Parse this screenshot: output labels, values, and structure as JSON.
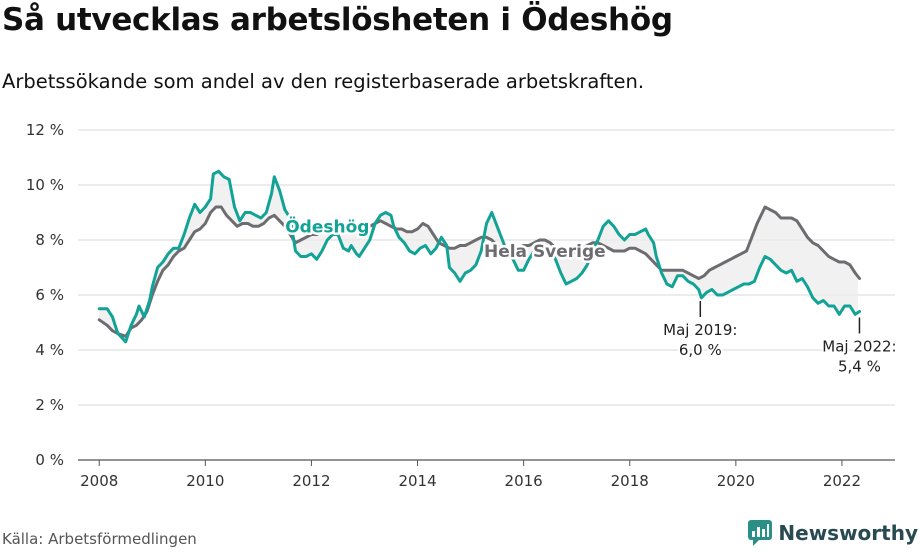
{
  "title": "Så utvecklas arbetslösheten i Ödeshög",
  "subtitle": "Arbetssökande som andel av den registerbaserade arbetskraften.",
  "source": "Källa: Arbetsförmedlingen",
  "brand": "Newsworthy",
  "colors": {
    "local": "#12a396",
    "national": "#6d6d71",
    "grid": "#d9d9d9",
    "fill": "#ececec",
    "brand": "#2a8f86"
  },
  "chart_data": {
    "type": "line",
    "ylim": [
      0,
      12
    ],
    "yticks": [
      0,
      2,
      4,
      6,
      8,
      10,
      12
    ],
    "ytick_labels": [
      "0 %",
      "2 %",
      "4 %",
      "6 %",
      "8 %",
      "10 %",
      "12 %"
    ],
    "xlim": [
      2007.6,
      2023.0
    ],
    "xticks": [
      2008,
      2010,
      2012,
      2014,
      2016,
      2018,
      2020,
      2022
    ],
    "xtick_labels": [
      "2008",
      "2010",
      "2012",
      "2014",
      "2016",
      "2018",
      "2020",
      "2022"
    ],
    "grid": true,
    "series": [
      {
        "name": "Ödeshög",
        "key": "local",
        "points": [
          [
            2008.0,
            5.5
          ],
          [
            2008.15,
            5.5
          ],
          [
            2008.25,
            5.2
          ],
          [
            2008.35,
            4.6
          ],
          [
            2008.45,
            4.4
          ],
          [
            2008.5,
            4.3
          ],
          [
            2008.6,
            4.9
          ],
          [
            2008.7,
            5.3
          ],
          [
            2008.75,
            5.6
          ],
          [
            2008.85,
            5.2
          ],
          [
            2008.95,
            5.8
          ],
          [
            2009.0,
            6.3
          ],
          [
            2009.1,
            7.0
          ],
          [
            2009.2,
            7.2
          ],
          [
            2009.3,
            7.5
          ],
          [
            2009.4,
            7.7
          ],
          [
            2009.5,
            7.7
          ],
          [
            2009.6,
            8.2
          ],
          [
            2009.7,
            8.8
          ],
          [
            2009.8,
            9.3
          ],
          [
            2009.9,
            9.0
          ],
          [
            2010.0,
            9.2
          ],
          [
            2010.1,
            9.5
          ],
          [
            2010.15,
            10.4
          ],
          [
            2010.25,
            10.5
          ],
          [
            2010.35,
            10.3
          ],
          [
            2010.45,
            10.2
          ],
          [
            2010.55,
            9.2
          ],
          [
            2010.65,
            8.7
          ],
          [
            2010.75,
            9.0
          ],
          [
            2010.85,
            9.0
          ],
          [
            2010.95,
            8.9
          ],
          [
            2011.05,
            8.8
          ],
          [
            2011.15,
            9.0
          ],
          [
            2011.25,
            9.7
          ],
          [
            2011.3,
            10.3
          ],
          [
            2011.4,
            9.8
          ],
          [
            2011.5,
            9.1
          ],
          [
            2011.6,
            8.8
          ],
          [
            2011.7,
            7.6
          ],
          [
            2011.8,
            7.4
          ],
          [
            2011.9,
            7.4
          ],
          [
            2012.0,
            7.5
          ],
          [
            2012.1,
            7.3
          ],
          [
            2012.2,
            7.6
          ],
          [
            2012.3,
            8.0
          ],
          [
            2012.4,
            8.2
          ],
          [
            2012.5,
            8.2
          ],
          [
            2012.6,
            7.7
          ],
          [
            2012.7,
            7.6
          ],
          [
            2012.75,
            7.8
          ],
          [
            2012.85,
            7.5
          ],
          [
            2012.9,
            7.4
          ],
          [
            2013.0,
            7.7
          ],
          [
            2013.1,
            8.0
          ],
          [
            2013.2,
            8.6
          ],
          [
            2013.3,
            8.9
          ],
          [
            2013.4,
            9.0
          ],
          [
            2013.5,
            8.9
          ],
          [
            2013.55,
            8.5
          ],
          [
            2013.65,
            8.1
          ],
          [
            2013.75,
            7.9
          ],
          [
            2013.85,
            7.6
          ],
          [
            2013.95,
            7.5
          ],
          [
            2014.05,
            7.7
          ],
          [
            2014.15,
            7.8
          ],
          [
            2014.25,
            7.5
          ],
          [
            2014.35,
            7.7
          ],
          [
            2014.45,
            8.1
          ],
          [
            2014.55,
            7.8
          ],
          [
            2014.6,
            7.0
          ],
          [
            2014.7,
            6.8
          ],
          [
            2014.8,
            6.5
          ],
          [
            2014.9,
            6.8
          ],
          [
            2015.0,
            6.9
          ],
          [
            2015.1,
            7.1
          ],
          [
            2015.2,
            7.6
          ],
          [
            2015.3,
            8.6
          ],
          [
            2015.4,
            9.0
          ],
          [
            2015.5,
            8.5
          ],
          [
            2015.6,
            8.0
          ],
          [
            2015.7,
            7.5
          ],
          [
            2015.8,
            7.3
          ],
          [
            2015.9,
            6.9
          ],
          [
            2016.0,
            6.9
          ],
          [
            2016.1,
            7.3
          ],
          [
            2016.2,
            7.6
          ],
          [
            2016.3,
            7.6
          ],
          [
            2016.4,
            7.6
          ],
          [
            2016.5,
            7.6
          ],
          [
            2016.6,
            7.3
          ],
          [
            2016.7,
            6.8
          ],
          [
            2016.8,
            6.4
          ],
          [
            2016.9,
            6.5
          ],
          [
            2017.0,
            6.6
          ],
          [
            2017.1,
            6.8
          ],
          [
            2017.2,
            7.1
          ],
          [
            2017.3,
            7.6
          ],
          [
            2017.4,
            8.0
          ],
          [
            2017.5,
            8.5
          ],
          [
            2017.6,
            8.7
          ],
          [
            2017.7,
            8.5
          ],
          [
            2017.8,
            8.2
          ],
          [
            2017.9,
            8.0
          ],
          [
            2018.0,
            8.2
          ],
          [
            2018.1,
            8.2
          ],
          [
            2018.2,
            8.3
          ],
          [
            2018.3,
            8.4
          ],
          [
            2018.35,
            8.2
          ],
          [
            2018.45,
            7.9
          ],
          [
            2018.5,
            7.4
          ],
          [
            2018.6,
            6.8
          ],
          [
            2018.7,
            6.4
          ],
          [
            2018.8,
            6.3
          ],
          [
            2018.9,
            6.7
          ],
          [
            2019.0,
            6.7
          ],
          [
            2019.1,
            6.5
          ],
          [
            2019.2,
            6.4
          ],
          [
            2019.3,
            6.2
          ],
          [
            2019.35,
            5.9
          ],
          [
            2019.45,
            6.1
          ],
          [
            2019.55,
            6.2
          ],
          [
            2019.65,
            6.0
          ],
          [
            2019.75,
            6.0
          ],
          [
            2019.85,
            6.1
          ],
          [
            2019.95,
            6.2
          ],
          [
            2020.05,
            6.3
          ],
          [
            2020.15,
            6.4
          ],
          [
            2020.25,
            6.4
          ],
          [
            2020.35,
            6.5
          ],
          [
            2020.45,
            7.0
          ],
          [
            2020.55,
            7.4
          ],
          [
            2020.65,
            7.3
          ],
          [
            2020.75,
            7.1
          ],
          [
            2020.85,
            6.9
          ],
          [
            2020.95,
            6.8
          ],
          [
            2021.05,
            6.9
          ],
          [
            2021.15,
            6.5
          ],
          [
            2021.25,
            6.6
          ],
          [
            2021.35,
            6.3
          ],
          [
            2021.45,
            5.9
          ],
          [
            2021.55,
            5.7
          ],
          [
            2021.65,
            5.8
          ],
          [
            2021.75,
            5.6
          ],
          [
            2021.85,
            5.6
          ],
          [
            2021.95,
            5.3
          ],
          [
            2022.05,
            5.6
          ],
          [
            2022.15,
            5.6
          ],
          [
            2022.25,
            5.3
          ],
          [
            2022.33,
            5.4
          ]
        ]
      },
      {
        "name": "Hela Sverige",
        "key": "national",
        "points": [
          [
            2008.0,
            5.1
          ],
          [
            2008.15,
            4.9
          ],
          [
            2008.25,
            4.7
          ],
          [
            2008.35,
            4.6
          ],
          [
            2008.5,
            4.5
          ],
          [
            2008.6,
            4.8
          ],
          [
            2008.7,
            4.9
          ],
          [
            2008.8,
            5.1
          ],
          [
            2008.9,
            5.4
          ],
          [
            2009.0,
            6.0
          ],
          [
            2009.1,
            6.5
          ],
          [
            2009.2,
            6.9
          ],
          [
            2009.3,
            7.1
          ],
          [
            2009.4,
            7.4
          ],
          [
            2009.5,
            7.6
          ],
          [
            2009.6,
            7.7
          ],
          [
            2009.7,
            8.0
          ],
          [
            2009.8,
            8.3
          ],
          [
            2009.9,
            8.4
          ],
          [
            2010.0,
            8.6
          ],
          [
            2010.1,
            9.0
          ],
          [
            2010.2,
            9.2
          ],
          [
            2010.3,
            9.2
          ],
          [
            2010.4,
            8.9
          ],
          [
            2010.5,
            8.7
          ],
          [
            2010.6,
            8.5
          ],
          [
            2010.7,
            8.6
          ],
          [
            2010.8,
            8.6
          ],
          [
            2010.9,
            8.5
          ],
          [
            2011.0,
            8.5
          ],
          [
            2011.1,
            8.6
          ],
          [
            2011.2,
            8.8
          ],
          [
            2011.3,
            8.9
          ],
          [
            2011.4,
            8.7
          ],
          [
            2011.5,
            8.5
          ],
          [
            2011.6,
            8.2
          ],
          [
            2011.7,
            7.9
          ],
          [
            2011.8,
            8.0
          ],
          [
            2011.9,
            8.1
          ],
          [
            2012.0,
            8.2
          ],
          [
            2012.1,
            8.2
          ],
          [
            2012.2,
            8.3
          ],
          [
            2012.3,
            8.4
          ],
          [
            2012.4,
            8.5
          ],
          [
            2012.5,
            8.5
          ],
          [
            2012.6,
            8.5
          ],
          [
            2012.7,
            8.4
          ],
          [
            2012.8,
            8.3
          ],
          [
            2012.9,
            8.3
          ],
          [
            2013.0,
            8.4
          ],
          [
            2013.1,
            8.5
          ],
          [
            2013.2,
            8.6
          ],
          [
            2013.3,
            8.7
          ],
          [
            2013.4,
            8.6
          ],
          [
            2013.5,
            8.5
          ],
          [
            2013.6,
            8.4
          ],
          [
            2013.7,
            8.4
          ],
          [
            2013.8,
            8.3
          ],
          [
            2013.9,
            8.3
          ],
          [
            2014.0,
            8.4
          ],
          [
            2014.1,
            8.6
          ],
          [
            2014.2,
            8.5
          ],
          [
            2014.3,
            8.2
          ],
          [
            2014.4,
            7.9
          ],
          [
            2014.5,
            7.8
          ],
          [
            2014.6,
            7.7
          ],
          [
            2014.7,
            7.7
          ],
          [
            2014.8,
            7.8
          ],
          [
            2014.9,
            7.8
          ],
          [
            2015.0,
            7.9
          ],
          [
            2015.1,
            8.0
          ],
          [
            2015.2,
            8.1
          ],
          [
            2015.3,
            8.1
          ],
          [
            2015.4,
            8.0
          ],
          [
            2015.5,
            7.8
          ],
          [
            2015.6,
            7.6
          ],
          [
            2015.7,
            7.5
          ],
          [
            2015.8,
            7.6
          ],
          [
            2015.9,
            7.7
          ],
          [
            2016.0,
            7.8
          ],
          [
            2016.1,
            7.8
          ],
          [
            2016.2,
            7.9
          ],
          [
            2016.3,
            8.0
          ],
          [
            2016.4,
            8.0
          ],
          [
            2016.5,
            7.9
          ],
          [
            2016.6,
            7.7
          ],
          [
            2016.7,
            7.5
          ],
          [
            2016.8,
            7.4
          ],
          [
            2016.9,
            7.5
          ],
          [
            2017.0,
            7.6
          ],
          [
            2017.1,
            7.7
          ],
          [
            2017.2,
            7.8
          ],
          [
            2017.3,
            7.9
          ],
          [
            2017.4,
            7.9
          ],
          [
            2017.5,
            7.8
          ],
          [
            2017.6,
            7.7
          ],
          [
            2017.7,
            7.6
          ],
          [
            2017.8,
            7.6
          ],
          [
            2017.9,
            7.6
          ],
          [
            2018.0,
            7.7
          ],
          [
            2018.1,
            7.7
          ],
          [
            2018.2,
            7.6
          ],
          [
            2018.3,
            7.5
          ],
          [
            2018.4,
            7.3
          ],
          [
            2018.5,
            7.1
          ],
          [
            2018.6,
            6.9
          ],
          [
            2018.7,
            6.9
          ],
          [
            2018.8,
            6.9
          ],
          [
            2018.9,
            6.9
          ],
          [
            2019.0,
            6.9
          ],
          [
            2019.1,
            6.8
          ],
          [
            2019.2,
            6.7
          ],
          [
            2019.3,
            6.6
          ],
          [
            2019.4,
            6.7
          ],
          [
            2019.5,
            6.9
          ],
          [
            2019.6,
            7.0
          ],
          [
            2019.7,
            7.1
          ],
          [
            2019.8,
            7.2
          ],
          [
            2019.9,
            7.3
          ],
          [
            2020.0,
            7.4
          ],
          [
            2020.1,
            7.5
          ],
          [
            2020.2,
            7.6
          ],
          [
            2020.3,
            8.1
          ],
          [
            2020.4,
            8.6
          ],
          [
            2020.5,
            9.0
          ],
          [
            2020.55,
            9.2
          ],
          [
            2020.65,
            9.1
          ],
          [
            2020.75,
            9.0
          ],
          [
            2020.85,
            8.8
          ],
          [
            2020.95,
            8.8
          ],
          [
            2021.05,
            8.8
          ],
          [
            2021.15,
            8.7
          ],
          [
            2021.25,
            8.4
          ],
          [
            2021.35,
            8.1
          ],
          [
            2021.45,
            7.9
          ],
          [
            2021.55,
            7.8
          ],
          [
            2021.65,
            7.6
          ],
          [
            2021.75,
            7.4
          ],
          [
            2021.85,
            7.3
          ],
          [
            2021.95,
            7.2
          ],
          [
            2022.05,
            7.2
          ],
          [
            2022.15,
            7.1
          ],
          [
            2022.25,
            6.8
          ],
          [
            2022.33,
            6.6
          ]
        ]
      }
    ],
    "labels": [
      {
        "text": "Ödeshög",
        "series": "local",
        "x": 2012.3,
        "y": 8.5
      },
      {
        "text": "Hela Sverige",
        "series": "national",
        "x": 2016.4,
        "y": 7.6
      }
    ],
    "annotations": [
      {
        "id": "may2019",
        "x": 2019.33,
        "y": 6.0,
        "lines": [
          "Maj 2019:",
          "6,0 %"
        ]
      },
      {
        "id": "may2022",
        "x": 2022.33,
        "y": 5.4,
        "lines": [
          "Maj 2022:",
          "5,4 %"
        ]
      }
    ]
  }
}
